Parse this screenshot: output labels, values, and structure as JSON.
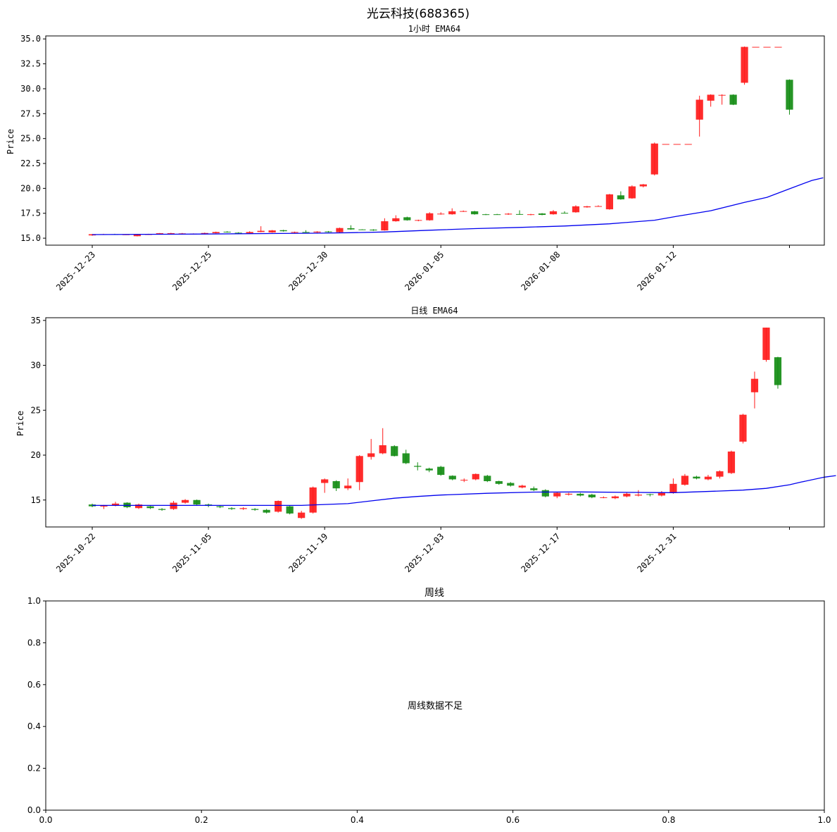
{
  "figure": {
    "title": "光云科技(688365)"
  },
  "chart_data": [
    {
      "type": "candlestick",
      "title": "1小时 EMA64",
      "ylabel": "Price",
      "ylim": [
        14.3,
        35.3
      ],
      "yticks": [
        15.0,
        17.5,
        20.0,
        22.5,
        25.0,
        27.5,
        30.0,
        32.5,
        35.0
      ],
      "xtick_labels": [
        "2025-12-23",
        "2025-12-25",
        "2025-12-30",
        "2026-01-05",
        "2026-01-08",
        "2026-01-12",
        ""
      ],
      "xtick_positions": [
        0,
        10,
        20,
        30,
        40,
        50,
        60
      ],
      "xlim": [
        -4,
        63
      ],
      "up_color": "#ff1a1a",
      "down_color": "#148c14",
      "ema_color": "#0000ee",
      "candles": [
        [
          15.28,
          15.4,
          15.42,
          15.24
        ],
        [
          15.38,
          15.4,
          15.44,
          15.34
        ],
        [
          15.4,
          15.38,
          15.44,
          15.34
        ],
        [
          15.36,
          15.38,
          15.4,
          15.32
        ],
        [
          15.2,
          15.38,
          15.42,
          15.18
        ],
        [
          15.38,
          15.4,
          15.44,
          15.34
        ],
        [
          15.4,
          15.5,
          15.52,
          15.36
        ],
        [
          15.4,
          15.5,
          15.54,
          15.38
        ],
        [
          15.45,
          15.48,
          15.52,
          15.42
        ],
        [
          15.42,
          15.45,
          15.48,
          15.4
        ],
        [
          15.4,
          15.52,
          15.56,
          15.38
        ],
        [
          15.5,
          15.62,
          15.66,
          15.48
        ],
        [
          15.65,
          15.6,
          15.7,
          15.56
        ],
        [
          15.55,
          15.5,
          15.6,
          15.46
        ],
        [
          15.5,
          15.62,
          15.7,
          15.48
        ],
        [
          15.62,
          15.74,
          16.2,
          15.6
        ],
        [
          15.58,
          15.78,
          15.82,
          15.55
        ],
        [
          15.8,
          15.7,
          15.84,
          15.66
        ],
        [
          15.55,
          15.62,
          15.66,
          15.5
        ],
        [
          15.62,
          15.6,
          15.8,
          15.56
        ],
        [
          15.58,
          15.66,
          15.7,
          15.54
        ],
        [
          15.68,
          15.62,
          15.72,
          15.58
        ],
        [
          15.6,
          16.02,
          16.06,
          15.56
        ],
        [
          16.0,
          15.88,
          16.3,
          15.84
        ],
        [
          15.88,
          15.86,
          15.9,
          15.82
        ],
        [
          15.86,
          15.78,
          15.9,
          15.74
        ],
        [
          15.78,
          16.7,
          17.0,
          15.76
        ],
        [
          16.7,
          17.0,
          17.3,
          16.66
        ],
        [
          17.1,
          16.8,
          17.16,
          16.76
        ],
        [
          16.75,
          16.82,
          16.86,
          16.7
        ],
        [
          16.8,
          17.5,
          17.6,
          16.76
        ],
        [
          17.4,
          17.46,
          17.6,
          17.36
        ],
        [
          17.4,
          17.7,
          18.0,
          17.36
        ],
        [
          17.7,
          17.72,
          17.78,
          17.64
        ],
        [
          17.7,
          17.4,
          17.74,
          17.36
        ],
        [
          17.4,
          17.38,
          17.44,
          17.32
        ],
        [
          17.4,
          17.38,
          17.44,
          17.34
        ],
        [
          17.38,
          17.46,
          17.52,
          17.34
        ],
        [
          17.42,
          17.4,
          17.8,
          17.36
        ],
        [
          17.34,
          17.4,
          17.44,
          17.3
        ],
        [
          17.48,
          17.34,
          17.52,
          17.3
        ],
        [
          17.4,
          17.7,
          17.82,
          17.36
        ],
        [
          17.54,
          17.52,
          17.7,
          17.48
        ],
        [
          17.6,
          18.2,
          18.3,
          17.56
        ],
        [
          18.1,
          18.2,
          18.24,
          18.06
        ],
        [
          18.2,
          18.22,
          18.3,
          18.16
        ],
        [
          17.9,
          19.4,
          19.44,
          17.86
        ],
        [
          19.3,
          18.9,
          19.7,
          18.86
        ],
        [
          19.0,
          20.2,
          20.3,
          18.96
        ],
        [
          20.2,
          20.4,
          20.44,
          20.1
        ],
        [
          21.4,
          24.5,
          24.6,
          21.3
        ],
        [
          24.45,
          24.45,
          24.45,
          24.45
        ],
        [
          24.45,
          24.45,
          24.45,
          24.45
        ],
        [
          24.45,
          24.45,
          24.45,
          24.45
        ],
        [
          26.9,
          28.9,
          29.3,
          25.2
        ],
        [
          28.8,
          29.4,
          29.44,
          28.2
        ],
        [
          29.38,
          29.38,
          29.44,
          28.4
        ],
        [
          29.4,
          28.4,
          29.44,
          28.36
        ],
        [
          30.6,
          34.2,
          34.24,
          30.4
        ],
        [
          34.2,
          34.2,
          34.2,
          34.2
        ],
        [
          34.2,
          34.2,
          34.2,
          34.2
        ],
        [
          34.2,
          34.2,
          34.2,
          34.2
        ],
        [
          30.9,
          27.9,
          30.94,
          27.4
        ]
      ],
      "ema": [
        [
          0,
          15.36
        ],
        [
          10,
          15.42
        ],
        [
          20,
          15.5
        ],
        [
          23,
          15.55
        ],
        [
          26,
          15.62
        ],
        [
          30,
          15.8
        ],
        [
          34,
          15.96
        ],
        [
          38,
          16.08
        ],
        [
          42,
          16.22
        ],
        [
          46,
          16.44
        ],
        [
          50,
          16.8
        ],
        [
          52,
          17.2
        ],
        [
          55,
          17.76
        ],
        [
          58,
          18.6
        ],
        [
          60,
          19.1
        ],
        [
          62,
          19.96
        ],
        [
          64,
          20.8
        ],
        [
          65,
          21.06
        ]
      ]
    },
    {
      "type": "candlestick",
      "title": "日线 EMA64",
      "ylabel": "Price",
      "ylim": [
        12.0,
        35.3
      ],
      "yticks": [
        15,
        20,
        25,
        30,
        35
      ],
      "xtick_labels": [
        "2025-10-22",
        "2025-11-05",
        "2025-11-19",
        "2025-12-03",
        "2025-12-17",
        "2025-12-31",
        ""
      ],
      "xtick_positions": [
        0,
        10,
        20,
        30,
        40,
        50,
        60
      ],
      "xlim": [
        -4,
        63
      ],
      "up_color": "#ff1a1a",
      "down_color": "#148c14",
      "ema_color": "#0000ee",
      "candles": [
        [
          14.5,
          14.3,
          14.6,
          14.2
        ],
        [
          14.3,
          14.35,
          14.45,
          14.0
        ],
        [
          14.4,
          14.6,
          14.8,
          14.3
        ],
        [
          14.7,
          14.2,
          14.75,
          14.1
        ],
        [
          14.1,
          14.5,
          14.6,
          14.0
        ],
        [
          14.3,
          14.1,
          14.35,
          14.0
        ],
        [
          14.0,
          13.9,
          14.1,
          13.8
        ],
        [
          14.0,
          14.7,
          14.9,
          13.9
        ],
        [
          14.7,
          15.0,
          15.1,
          14.6
        ],
        [
          15.0,
          14.5,
          15.05,
          14.4
        ],
        [
          14.5,
          14.4,
          14.6,
          14.2
        ],
        [
          14.3,
          14.2,
          14.4,
          14.1
        ],
        [
          14.1,
          14.0,
          14.2,
          13.9
        ],
        [
          14.0,
          14.1,
          14.2,
          13.9
        ],
        [
          14.0,
          13.9,
          14.1,
          13.8
        ],
        [
          13.9,
          13.6,
          14.0,
          13.5
        ],
        [
          13.7,
          14.9,
          14.95,
          13.6
        ],
        [
          14.3,
          13.5,
          14.35,
          13.4
        ],
        [
          13.0,
          13.6,
          13.8,
          12.9
        ],
        [
          13.6,
          16.4,
          16.5,
          13.5
        ],
        [
          16.9,
          17.3,
          17.4,
          15.8
        ],
        [
          17.1,
          16.3,
          17.2,
          16.0
        ],
        [
          16.3,
          16.6,
          17.4,
          16.1
        ],
        [
          17.0,
          19.9,
          20.0,
          16.1
        ],
        [
          19.8,
          20.2,
          21.8,
          19.5
        ],
        [
          20.2,
          21.1,
          23.0,
          20.1
        ],
        [
          21.0,
          19.9,
          21.1,
          19.85
        ],
        [
          20.2,
          19.1,
          20.6,
          19.0
        ],
        [
          18.8,
          18.7,
          19.2,
          18.3
        ],
        [
          18.5,
          18.3,
          18.6,
          18.1
        ],
        [
          18.7,
          17.8,
          18.8,
          17.7
        ],
        [
          17.7,
          17.3,
          17.75,
          17.2
        ],
        [
          17.2,
          17.25,
          17.4,
          17.0
        ],
        [
          17.3,
          17.9,
          17.95,
          17.2
        ],
        [
          17.7,
          17.1,
          17.8,
          17.0
        ],
        [
          17.1,
          16.8,
          17.15,
          16.7
        ],
        [
          16.9,
          16.6,
          17.0,
          16.5
        ],
        [
          16.4,
          16.6,
          16.7,
          16.3
        ],
        [
          16.3,
          16.1,
          16.5,
          16.0
        ],
        [
          16.1,
          15.4,
          16.2,
          15.3
        ],
        [
          15.4,
          15.8,
          15.85,
          15.2
        ],
        [
          15.6,
          15.7,
          15.8,
          15.5
        ],
        [
          15.7,
          15.5,
          15.8,
          15.4
        ],
        [
          15.6,
          15.3,
          15.7,
          15.2
        ],
        [
          15.3,
          15.3,
          15.4,
          15.2
        ],
        [
          15.2,
          15.4,
          15.5,
          15.1
        ],
        [
          15.4,
          15.7,
          15.8,
          15.3
        ],
        [
          15.5,
          15.6,
          16.1,
          15.4
        ],
        [
          15.65,
          15.6,
          15.7,
          15.4
        ],
        [
          15.5,
          15.8,
          16.0,
          15.4
        ],
        [
          15.8,
          16.8,
          17.4,
          15.7
        ],
        [
          16.7,
          17.7,
          17.9,
          16.6
        ],
        [
          17.6,
          17.4,
          17.7,
          17.3
        ],
        [
          17.3,
          17.6,
          17.8,
          17.2
        ],
        [
          17.6,
          18.2,
          18.3,
          17.4
        ],
        [
          18.0,
          20.4,
          20.5,
          17.9
        ],
        [
          21.5,
          24.5,
          24.6,
          21.3
        ],
        [
          27.0,
          28.5,
          29.3,
          25.2
        ],
        [
          30.6,
          34.2,
          34.2,
          30.4
        ],
        [
          30.9,
          27.8,
          30.95,
          27.4
        ]
      ],
      "ema": [
        [
          0,
          14.4
        ],
        [
          10,
          14.4
        ],
        [
          18,
          14.4
        ],
        [
          20,
          14.5
        ],
        [
          22,
          14.6
        ],
        [
          24,
          14.9
        ],
        [
          26,
          15.2
        ],
        [
          28,
          15.4
        ],
        [
          30,
          15.55
        ],
        [
          34,
          15.75
        ],
        [
          38,
          15.88
        ],
        [
          42,
          15.9
        ],
        [
          46,
          15.85
        ],
        [
          50,
          15.82
        ],
        [
          54,
          16.0
        ],
        [
          56,
          16.1
        ],
        [
          58,
          16.3
        ],
        [
          60,
          16.7
        ],
        [
          61,
          17.0
        ],
        [
          63,
          17.55
        ],
        [
          64,
          17.72
        ]
      ]
    },
    {
      "type": "empty",
      "title": "周线",
      "message": "周线数据不足",
      "xlim": [
        0,
        1
      ],
      "ylim": [
        0,
        1
      ],
      "xtick_labels": [
        "0.0",
        "0.2",
        "0.4",
        "0.6",
        "0.8",
        "1.0"
      ],
      "ytick_labels": [
        "0.0",
        "0.2",
        "0.4",
        "0.6",
        "0.8",
        "1.0"
      ]
    }
  ]
}
